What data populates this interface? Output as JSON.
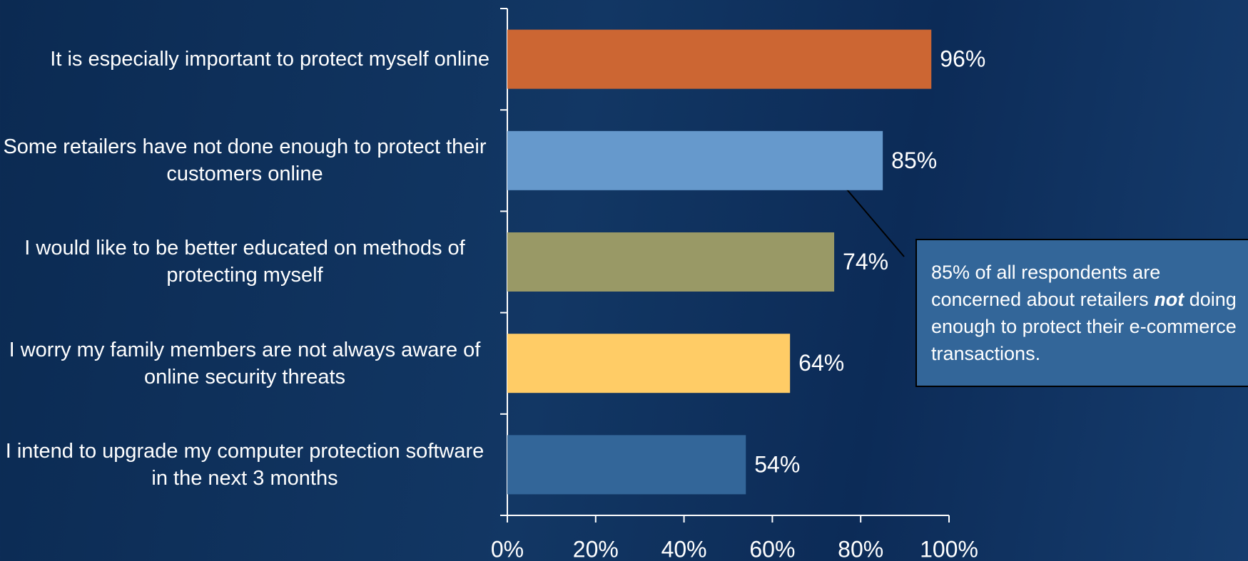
{
  "chart_data": {
    "type": "barh",
    "categories": [
      "It is especially important to protect myself online",
      "Some retailers have not done enough to protect their customers online",
      "I would like to be better educated on methods of protecting myself",
      "I worry my family members are not always aware of online security threats",
      "I intend to upgrade my computer protection software in the next 3 months"
    ],
    "values": [
      96,
      85,
      74,
      64,
      54
    ],
    "value_labels": [
      "96%",
      "85%",
      "74%",
      "64%",
      "54%"
    ],
    "colors": [
      "#cc6633",
      "#6699cc",
      "#999966",
      "#ffcc66",
      "#336699"
    ],
    "xlim": [
      0,
      100
    ],
    "xticks": [
      {
        "value": 0,
        "label": "0%"
      },
      {
        "value": 20,
        "label": "20%"
      },
      {
        "value": 40,
        "label": "40%"
      },
      {
        "value": 60,
        "label": "60%"
      },
      {
        "value": 80,
        "label": "80%"
      },
      {
        "value": 100,
        "label": "100%"
      }
    ],
    "annotation": {
      "before": "85% of all respondents are concerned about retailers",
      "emphasis": "not",
      "after": "doing enough to protect their e-commerce transactions."
    }
  }
}
